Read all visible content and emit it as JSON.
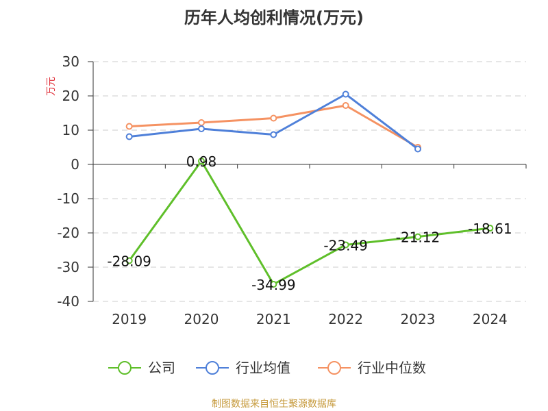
{
  "chart_data": {
    "type": "line",
    "title": "历年人均创利情况(万元)",
    "ylabel": "万元",
    "xlabel": "",
    "categories": [
      "2019",
      "2020",
      "2021",
      "2022",
      "2023",
      "2024"
    ],
    "ylim": [
      -40,
      30
    ],
    "yticks": [
      "30",
      "20",
      "10",
      "0",
      "-10",
      "-20",
      "-30",
      "-40"
    ],
    "grid": "horizontal dashed",
    "legend_position": "bottom-center",
    "series": [
      {
        "name": "公司",
        "color": "#5fbf2a",
        "values": [
          -28.09,
          0.98,
          -34.99,
          -23.49,
          -21.12,
          -18.61
        ],
        "labels": [
          "-28.09",
          "0.98",
          "-34.99",
          "-23.49",
          "-21.12",
          "-18.61"
        ]
      },
      {
        "name": "行业均值",
        "color": "#4f80d9",
        "values": [
          8.1,
          10.4,
          8.7,
          20.5,
          4.5,
          null
        ]
      },
      {
        "name": "行业中位数",
        "color": "#f59262",
        "values": [
          11.1,
          12.2,
          13.5,
          17.2,
          5.0,
          null
        ]
      }
    ]
  },
  "colors": {
    "ylabel": "#e0303a",
    "source": "#c69a3c"
  },
  "source_text": "制图数据来自恒生聚源数据库"
}
